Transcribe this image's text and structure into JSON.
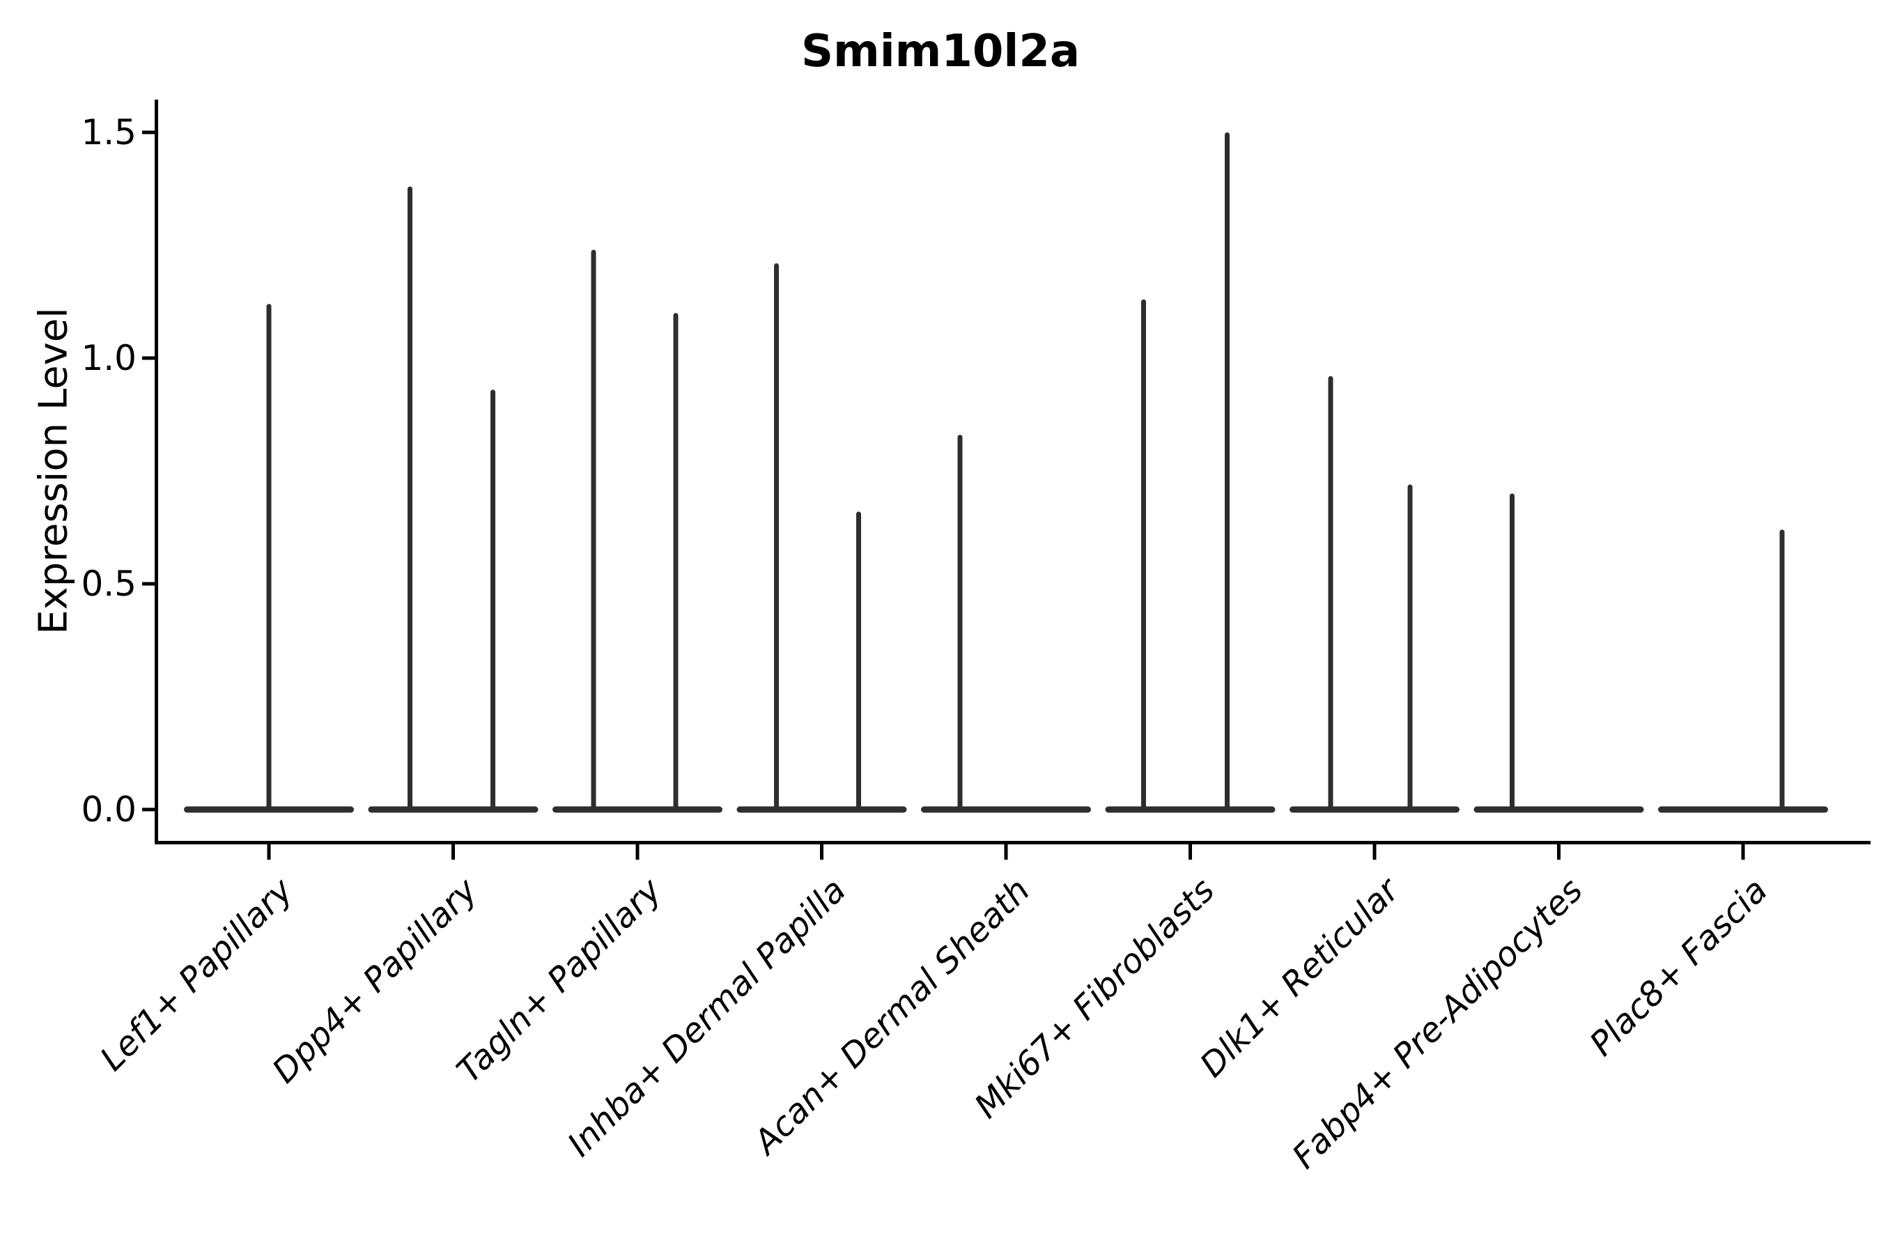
{
  "title": "Smim10l2a",
  "axes": {
    "ylabel": "Expression Level",
    "xlabel": "",
    "ytick_labels": [
      "0.0",
      "0.5",
      "1.0",
      "1.5"
    ]
  },
  "chart_data": {
    "type": "violin",
    "title": "Smim10l2a",
    "xlabel": "",
    "ylabel": "Expression Level",
    "categories": [
      "Lef1+ Papillary",
      "Dpp4+ Papillary",
      "Tagln+ Papillary",
      "Inhba+ Dermal Papilla",
      "Acan+ Dermal Sheath",
      "Mki67+ Fibroblasts",
      "Dlk1+ Reticular",
      "Fabp4+ Pre-Adipocytes",
      "Plac8+ Fascia"
    ],
    "yticks": [
      0.0,
      0.5,
      1.0,
      1.5
    ],
    "ylim": [
      0,
      1.57
    ],
    "grid": false,
    "legend": null,
    "description": "Violin plot of Smim10l2a expression: nearly all cells are at 0 (wide flat violin bases); razor-thin spikes mark the rare expressing cells, topping out at the listed maxima.",
    "violins": [
      {
        "category": "Lef1+ Papillary",
        "spikes": [
          {
            "value": 1.12,
            "dx": 0
          }
        ]
      },
      {
        "category": "Dpp4+ Papillary",
        "spikes": [
          {
            "value": 1.38,
            "dx": -62
          },
          {
            "value": 0.93,
            "dx": 57
          }
        ]
      },
      {
        "category": "Tagln+ Papillary",
        "spikes": [
          {
            "value": 1.24,
            "dx": -63
          },
          {
            "value": 1.1,
            "dx": 55
          }
        ]
      },
      {
        "category": "Inhba+ Dermal Papilla",
        "spikes": [
          {
            "value": 1.21,
            "dx": -65
          },
          {
            "value": 0.66,
            "dx": 53
          }
        ]
      },
      {
        "category": "Acan+ Dermal Sheath",
        "spikes": [
          {
            "value": 0.83,
            "dx": -66
          }
        ]
      },
      {
        "category": "Mki67+ Fibroblasts",
        "spikes": [
          {
            "value": 1.13,
            "dx": -67
          },
          {
            "value": 1.5,
            "dx": 53
          }
        ]
      },
      {
        "category": "Dlk1+ Reticular",
        "spikes": [
          {
            "value": 0.96,
            "dx": -63
          },
          {
            "value": 0.72,
            "dx": 51
          }
        ]
      },
      {
        "category": "Fabp4+ Pre-Adipocytes",
        "spikes": [
          {
            "value": 0.7,
            "dx": -67
          }
        ]
      },
      {
        "category": "Plac8+ Fascia",
        "spikes": [
          {
            "value": 0.62,
            "dx": 56
          }
        ]
      }
    ],
    "colors": {
      "violin": "#2e2e2e",
      "axis": "#000000",
      "background": "#ffffff"
    }
  }
}
